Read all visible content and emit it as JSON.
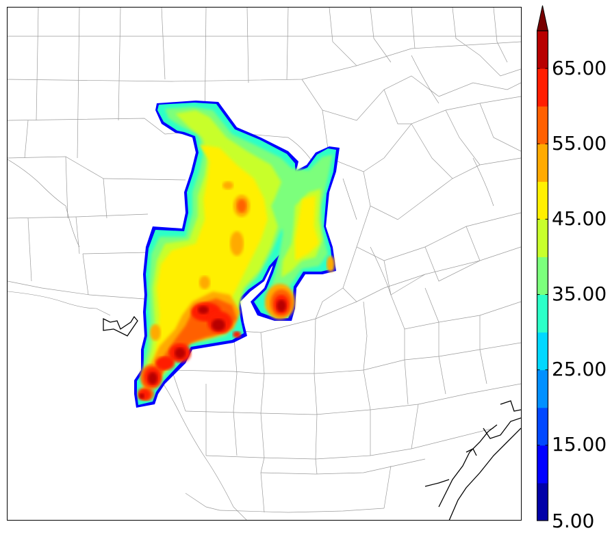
{
  "colorbar": {
    "tick_labels": [
      "5.00",
      "15.00",
      "25.00",
      "35.00",
      "45.00",
      "55.00",
      "65.00"
    ],
    "levels": [
      5,
      10,
      15,
      20,
      25,
      30,
      35,
      40,
      45,
      50,
      55,
      60,
      65,
      70
    ],
    "colors": [
      "#0000a8",
      "#0000ff",
      "#0048ff",
      "#0090ff",
      "#00d8ff",
      "#2cffc8",
      "#7cff7c",
      "#c8ff2c",
      "#fff000",
      "#ffaa00",
      "#ff6000",
      "#ff1e00",
      "#b80000",
      "#780000"
    ],
    "extend": "max"
  },
  "map": {
    "field": "reflectivity contour fill",
    "border_color": "#000000",
    "county_line_color": "#9a9a9a",
    "coast_color": "#000000"
  }
}
